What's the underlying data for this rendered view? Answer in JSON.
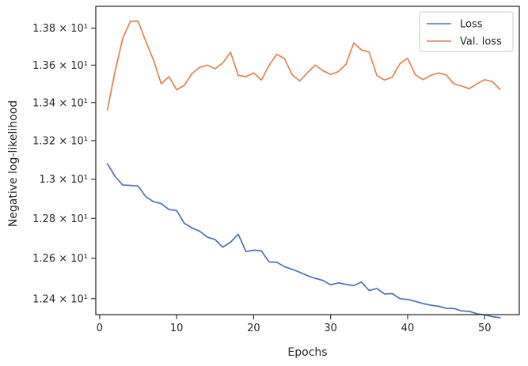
{
  "chart_data": {
    "type": "line",
    "xlabel": "Epochs",
    "ylabel": "Negative log-likelihood",
    "xlim": [
      -0.5,
      54.5
    ],
    "ylim": [
      12.322,
      13.92
    ],
    "y_scale": "log",
    "grid": false,
    "legend_position": "top-right",
    "x_ticks": [
      0,
      10,
      20,
      30,
      40,
      50
    ],
    "x_tick_labels": [
      "0",
      "10",
      "20",
      "30",
      "40",
      "50"
    ],
    "y_ticks": [
      12.4,
      12.6,
      12.8,
      13.0,
      13.2,
      13.4,
      13.6,
      13.8
    ],
    "y_tick_labels": [
      "1.24 × 10¹",
      "1.26 × 10¹",
      "1.28 × 10¹",
      "1.3 × 10¹",
      "1.32 × 10¹",
      "1.34 × 10¹",
      "1.36 × 10¹",
      "1.38 × 10¹"
    ],
    "x": [
      1,
      2,
      3,
      4,
      5,
      6,
      7,
      8,
      9,
      10,
      11,
      12,
      13,
      14,
      15,
      16,
      17,
      18,
      19,
      20,
      21,
      22,
      23,
      24,
      25,
      26,
      27,
      28,
      29,
      30,
      31,
      32,
      33,
      34,
      35,
      36,
      37,
      38,
      39,
      40,
      41,
      42,
      43,
      44,
      45,
      46,
      47,
      48,
      49,
      50,
      51,
      52
    ],
    "series": [
      {
        "name": "Loss",
        "color": "#4c72b0",
        "values": [
          13.08,
          13.015,
          12.97,
          12.968,
          12.965,
          12.91,
          12.885,
          12.875,
          12.845,
          12.84,
          12.775,
          12.752,
          12.735,
          12.705,
          12.693,
          12.655,
          12.68,
          12.72,
          12.633,
          12.64,
          12.637,
          12.582,
          12.58,
          12.558,
          12.545,
          12.53,
          12.513,
          12.5,
          12.49,
          12.468,
          12.478,
          12.47,
          12.464,
          12.482,
          12.44,
          12.45,
          12.423,
          12.425,
          12.4,
          12.396,
          12.387,
          12.376,
          12.368,
          12.363,
          12.353,
          12.352,
          12.34,
          12.338,
          12.326,
          12.321,
          12.312,
          12.307
        ]
      },
      {
        "name": "Val. loss",
        "color": "#dd8452",
        "values": [
          13.36,
          13.565,
          13.745,
          13.838,
          13.838,
          13.728,
          13.627,
          13.5,
          13.538,
          13.468,
          13.492,
          13.555,
          13.588,
          13.6,
          13.58,
          13.612,
          13.67,
          13.545,
          13.538,
          13.558,
          13.52,
          13.598,
          13.658,
          13.635,
          13.548,
          13.515,
          13.56,
          13.6,
          13.57,
          13.55,
          13.565,
          13.605,
          13.72,
          13.682,
          13.67,
          13.545,
          13.52,
          13.535,
          13.608,
          13.637,
          13.548,
          13.522,
          13.545,
          13.558,
          13.548,
          13.5,
          13.488,
          13.474,
          13.5,
          13.522,
          13.512,
          13.47
        ]
      }
    ]
  }
}
